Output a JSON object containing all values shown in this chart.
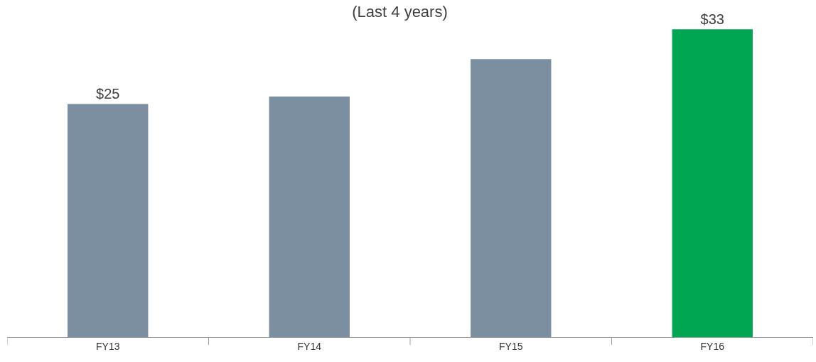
{
  "chart_data": {
    "type": "bar",
    "title": "(Last 4 years)",
    "categories": [
      "FY13",
      "FY14",
      "FY15",
      "FY16"
    ],
    "values": [
      25,
      25.8,
      29.8,
      33
    ],
    "colors": [
      "#7b8fa1",
      "#7b8fa1",
      "#7b8fa1",
      "#00a651"
    ],
    "value_labels": [
      "$25",
      null,
      null,
      "$33"
    ]
  }
}
